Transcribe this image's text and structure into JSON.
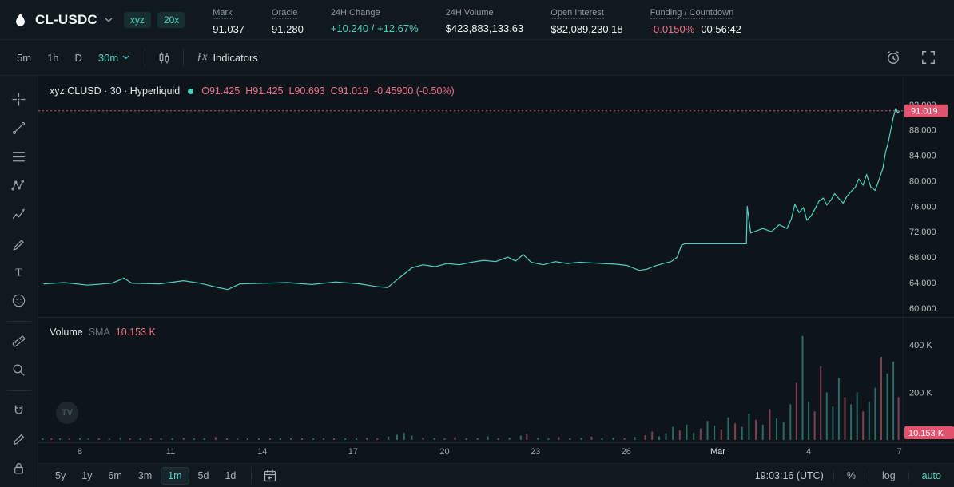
{
  "header": {
    "market": "CL-USDC",
    "badges": [
      "xyz",
      "20x"
    ],
    "stats": [
      {
        "label": "Mark",
        "underline": true,
        "parts": [
          {
            "text": "91.037"
          }
        ]
      },
      {
        "label": "Oracle",
        "underline": true,
        "parts": [
          {
            "text": "91.280"
          }
        ]
      },
      {
        "label": "24H Change",
        "parts": [
          {
            "text": "+10.240 / +12.67%",
            "color": "green"
          }
        ]
      },
      {
        "label": "24H Volume",
        "parts": [
          {
            "text": "$423,883,133.63"
          }
        ]
      },
      {
        "label": "Open Interest",
        "underline": true,
        "parts": [
          {
            "text": "$82,089,230.18"
          }
        ]
      },
      {
        "label": "Funding / Countdown",
        "underline": true,
        "parts": [
          {
            "text": "-0.0150%",
            "color": "red"
          },
          {
            "text": "00:56:42"
          }
        ]
      }
    ]
  },
  "chartbar": {
    "intervals": [
      "5m",
      "1h",
      "D"
    ],
    "active_interval": "30m",
    "fx": "ƒx",
    "indicators": "Indicators"
  },
  "drawbar": {
    "tools": [
      "crosshair",
      "trend-line",
      "fib-retracement",
      "xabcd-pattern",
      "forecast",
      "brush",
      "text",
      "emoji",
      "ruler",
      "zoom",
      "magnet",
      "edit",
      "lock"
    ],
    "dividers_after": [
      "emoji",
      "zoom"
    ]
  },
  "legend": {
    "symbol": "xyz:CLUSD · 30 · Hyperliquid",
    "ohlc": [
      "O91.425",
      "H91.425",
      "L90.693",
      "C91.019",
      "-0.45900 (-0.50%)"
    ]
  },
  "volume_legend": {
    "title": "Volume",
    "sma": "SMA",
    "value": "10.153 K"
  },
  "chrome": {
    "watermark": "TV"
  },
  "footer": {
    "ranges": [
      "5y",
      "1y",
      "6m",
      "3m",
      "1m",
      "5d",
      "1d"
    ],
    "active_range": "1m",
    "clock": "19:03:16 (UTC)",
    "percent": "%",
    "log": "log",
    "auto": "auto"
  },
  "chart_data": {
    "type": "line",
    "title": "xyz:CLUSD 30m with volume",
    "price_range": [
      58.6,
      96.5
    ],
    "price_axis": {
      "ticks": [
        92,
        88,
        84,
        80,
        76,
        72,
        68,
        64,
        60
      ]
    },
    "volume_axis": {
      "ticks": [
        {
          "v": 400,
          "label": "400 K"
        },
        {
          "v": 200,
          "label": "200 K"
        }
      ]
    },
    "time_axis": [
      {
        "label": "8",
        "pct": 4.8
      },
      {
        "label": "11",
        "pct": 15.3
      },
      {
        "label": "14",
        "pct": 25.9
      },
      {
        "label": "17",
        "pct": 36.4
      },
      {
        "label": "20",
        "pct": 47.0
      },
      {
        "label": "23",
        "pct": 57.5
      },
      {
        "label": "26",
        "pct": 68.0
      },
      {
        "label": "Mar",
        "pct": 78.6,
        "major": true
      },
      {
        "label": "4",
        "pct": 89.1
      },
      {
        "label": "7",
        "pct": 99.6
      }
    ],
    "current_price": 91.019,
    "current_price_label": "91.019",
    "current_volume_k": 10.153,
    "current_volume_label": "10.153 K",
    "colors": {
      "line": "#4fd1c0",
      "vol_up": "rgba(80,210,193,0.45)",
      "vol_down": "rgba(237,112,136,0.5)",
      "label_bg": "#e0526e"
    },
    "price_series": [
      [
        0.6,
        63.8
      ],
      [
        3,
        64.0
      ],
      [
        5.7,
        63.6
      ],
      [
        8.5,
        63.9
      ],
      [
        9.9,
        64.7
      ],
      [
        10.8,
        63.9
      ],
      [
        14,
        63.8
      ],
      [
        16.8,
        64.3
      ],
      [
        18.7,
        63.9
      ],
      [
        20.5,
        63.3
      ],
      [
        21.9,
        62.9
      ],
      [
        23.3,
        63.8
      ],
      [
        26.1,
        63.9
      ],
      [
        28.8,
        64.0
      ],
      [
        31.6,
        63.7
      ],
      [
        34.4,
        64.1
      ],
      [
        37.2,
        63.8
      ],
      [
        39,
        63.4
      ],
      [
        40.4,
        63.2
      ],
      [
        41.8,
        64.8
      ],
      [
        43.2,
        66.3
      ],
      [
        44.5,
        66.8
      ],
      [
        45.9,
        66.5
      ],
      [
        47.3,
        67.0
      ],
      [
        48.7,
        66.8
      ],
      [
        50.1,
        67.2
      ],
      [
        51.5,
        67.5
      ],
      [
        52.9,
        67.3
      ],
      [
        54.3,
        68.0
      ],
      [
        55.2,
        67.4
      ],
      [
        56.1,
        68.4
      ],
      [
        57,
        67.2
      ],
      [
        58.4,
        66.8
      ],
      [
        59.8,
        67.3
      ],
      [
        61.2,
        67.0
      ],
      [
        62.6,
        67.2
      ],
      [
        64,
        67.1
      ],
      [
        65.3,
        67.0
      ],
      [
        66.7,
        66.9
      ],
      [
        68.1,
        66.7
      ],
      [
        69.5,
        65.9
      ],
      [
        70.4,
        66.1
      ],
      [
        71.3,
        66.6
      ],
      [
        72.3,
        67.0
      ],
      [
        73.2,
        67.3
      ],
      [
        73.9,
        68.0
      ],
      [
        74.4,
        69.9
      ],
      [
        74.8,
        70.1
      ],
      [
        81.9,
        70.1
      ],
      [
        82.0,
        76.0
      ],
      [
        82.4,
        71.8
      ],
      [
        83.8,
        72.5
      ],
      [
        84.8,
        72.0
      ],
      [
        85.7,
        73.1
      ],
      [
        86.6,
        72.5
      ],
      [
        87.1,
        74.0
      ],
      [
        87.5,
        76.3
      ],
      [
        88.0,
        75.0
      ],
      [
        88.5,
        75.8
      ],
      [
        88.9,
        73.8
      ],
      [
        89.4,
        74.5
      ],
      [
        89.8,
        75.5
      ],
      [
        90.3,
        76.8
      ],
      [
        90.8,
        77.3
      ],
      [
        91.2,
        76.2
      ],
      [
        91.7,
        77.0
      ],
      [
        92.1,
        78.0
      ],
      [
        92.6,
        77.2
      ],
      [
        93.1,
        76.5
      ],
      [
        93.5,
        77.5
      ],
      [
        94,
        78.3
      ],
      [
        94.5,
        79.0
      ],
      [
        94.9,
        80.3
      ],
      [
        95.4,
        79.3
      ],
      [
        95.8,
        81.0
      ],
      [
        96.3,
        79.0
      ],
      [
        96.8,
        78.5
      ],
      [
        97.2,
        80.0
      ],
      [
        97.7,
        82.0
      ],
      [
        98.0,
        84.5
      ],
      [
        98.3,
        86.0
      ],
      [
        98.6,
        88.0
      ],
      [
        98.9,
        90.0
      ],
      [
        99.2,
        91.4
      ],
      [
        99.4,
        90.7
      ],
      [
        99.7,
        91.019
      ]
    ],
    "volume_bars": [
      [
        0.5,
        4,
        "g"
      ],
      [
        1.5,
        3,
        "r"
      ],
      [
        2.5,
        6,
        "g"
      ],
      [
        3.6,
        2,
        "r"
      ],
      [
        4.8,
        8,
        "g"
      ],
      [
        5.8,
        3,
        "g"
      ],
      [
        7,
        5,
        "r"
      ],
      [
        8.2,
        4,
        "g"
      ],
      [
        9.5,
        10,
        "g"
      ],
      [
        10.6,
        4,
        "r"
      ],
      [
        11.8,
        3,
        "g"
      ],
      [
        13,
        6,
        "r"
      ],
      [
        14.2,
        3,
        "g"
      ],
      [
        15.5,
        5,
        "g"
      ],
      [
        16.8,
        9,
        "r"
      ],
      [
        18,
        4,
        "g"
      ],
      [
        19.2,
        6,
        "g"
      ],
      [
        20.5,
        12,
        "r"
      ],
      [
        21.8,
        5,
        "r"
      ],
      [
        23,
        4,
        "g"
      ],
      [
        24.2,
        7,
        "g"
      ],
      [
        25.5,
        3,
        "g"
      ],
      [
        26.8,
        5,
        "r"
      ],
      [
        28,
        4,
        "g"
      ],
      [
        29.2,
        8,
        "g"
      ],
      [
        30.5,
        3,
        "r"
      ],
      [
        31.8,
        5,
        "g"
      ],
      [
        33,
        4,
        "g"
      ],
      [
        34.2,
        6,
        "r"
      ],
      [
        35.5,
        3,
        "g"
      ],
      [
        36.8,
        5,
        "g"
      ],
      [
        38,
        9,
        "r"
      ],
      [
        39.2,
        4,
        "r"
      ],
      [
        40.5,
        14,
        "g"
      ],
      [
        41.5,
        22,
        "g"
      ],
      [
        42.3,
        30,
        "g"
      ],
      [
        43.2,
        18,
        "g"
      ],
      [
        44.5,
        10,
        "r"
      ],
      [
        45.8,
        8,
        "g"
      ],
      [
        47,
        6,
        "g"
      ],
      [
        48.2,
        12,
        "r"
      ],
      [
        49.5,
        5,
        "g"
      ],
      [
        50.8,
        8,
        "g"
      ],
      [
        52,
        15,
        "g"
      ],
      [
        53.2,
        7,
        "r"
      ],
      [
        54.5,
        10,
        "g"
      ],
      [
        55.8,
        18,
        "g"
      ],
      [
        56.5,
        25,
        "r"
      ],
      [
        57.8,
        9,
        "g"
      ],
      [
        59,
        7,
        "g"
      ],
      [
        60.2,
        12,
        "r"
      ],
      [
        61.5,
        6,
        "g"
      ],
      [
        62.8,
        9,
        "g"
      ],
      [
        64,
        14,
        "r"
      ],
      [
        65.2,
        7,
        "g"
      ],
      [
        66.5,
        10,
        "g"
      ],
      [
        67.8,
        8,
        "r"
      ],
      [
        69,
        13,
        "g"
      ],
      [
        70.2,
        20,
        "r"
      ],
      [
        71,
        35,
        "r"
      ],
      [
        71.8,
        15,
        "g"
      ],
      [
        72.6,
        28,
        "g"
      ],
      [
        73.4,
        55,
        "g"
      ],
      [
        74.2,
        40,
        "r"
      ],
      [
        75,
        65,
        "g"
      ],
      [
        75.8,
        30,
        "g"
      ],
      [
        76.6,
        48,
        "r"
      ],
      [
        77.4,
        80,
        "g"
      ],
      [
        78.2,
        60,
        "g"
      ],
      [
        79,
        45,
        "r"
      ],
      [
        79.8,
        95,
        "g"
      ],
      [
        80.6,
        70,
        "r"
      ],
      [
        81.4,
        55,
        "g"
      ],
      [
        82.2,
        110,
        "g"
      ],
      [
        83,
        85,
        "r"
      ],
      [
        83.8,
        65,
        "g"
      ],
      [
        84.6,
        130,
        "r"
      ],
      [
        85.4,
        90,
        "g"
      ],
      [
        86.2,
        75,
        "g"
      ],
      [
        87,
        150,
        "g"
      ],
      [
        87.7,
        240,
        "r"
      ],
      [
        88.4,
        438,
        "g"
      ],
      [
        89.1,
        160,
        "g"
      ],
      [
        89.8,
        120,
        "r"
      ],
      [
        90.5,
        310,
        "r"
      ],
      [
        91.2,
        200,
        "g"
      ],
      [
        91.9,
        140,
        "g"
      ],
      [
        92.6,
        260,
        "g"
      ],
      [
        93.3,
        180,
        "r"
      ],
      [
        94,
        150,
        "g"
      ],
      [
        94.7,
        200,
        "g"
      ],
      [
        95.4,
        120,
        "r"
      ],
      [
        96.1,
        160,
        "g"
      ],
      [
        96.8,
        220,
        "g"
      ],
      [
        97.5,
        350,
        "r"
      ],
      [
        98.2,
        280,
        "g"
      ],
      [
        98.9,
        330,
        "g"
      ],
      [
        99.5,
        180,
        "r"
      ]
    ]
  }
}
